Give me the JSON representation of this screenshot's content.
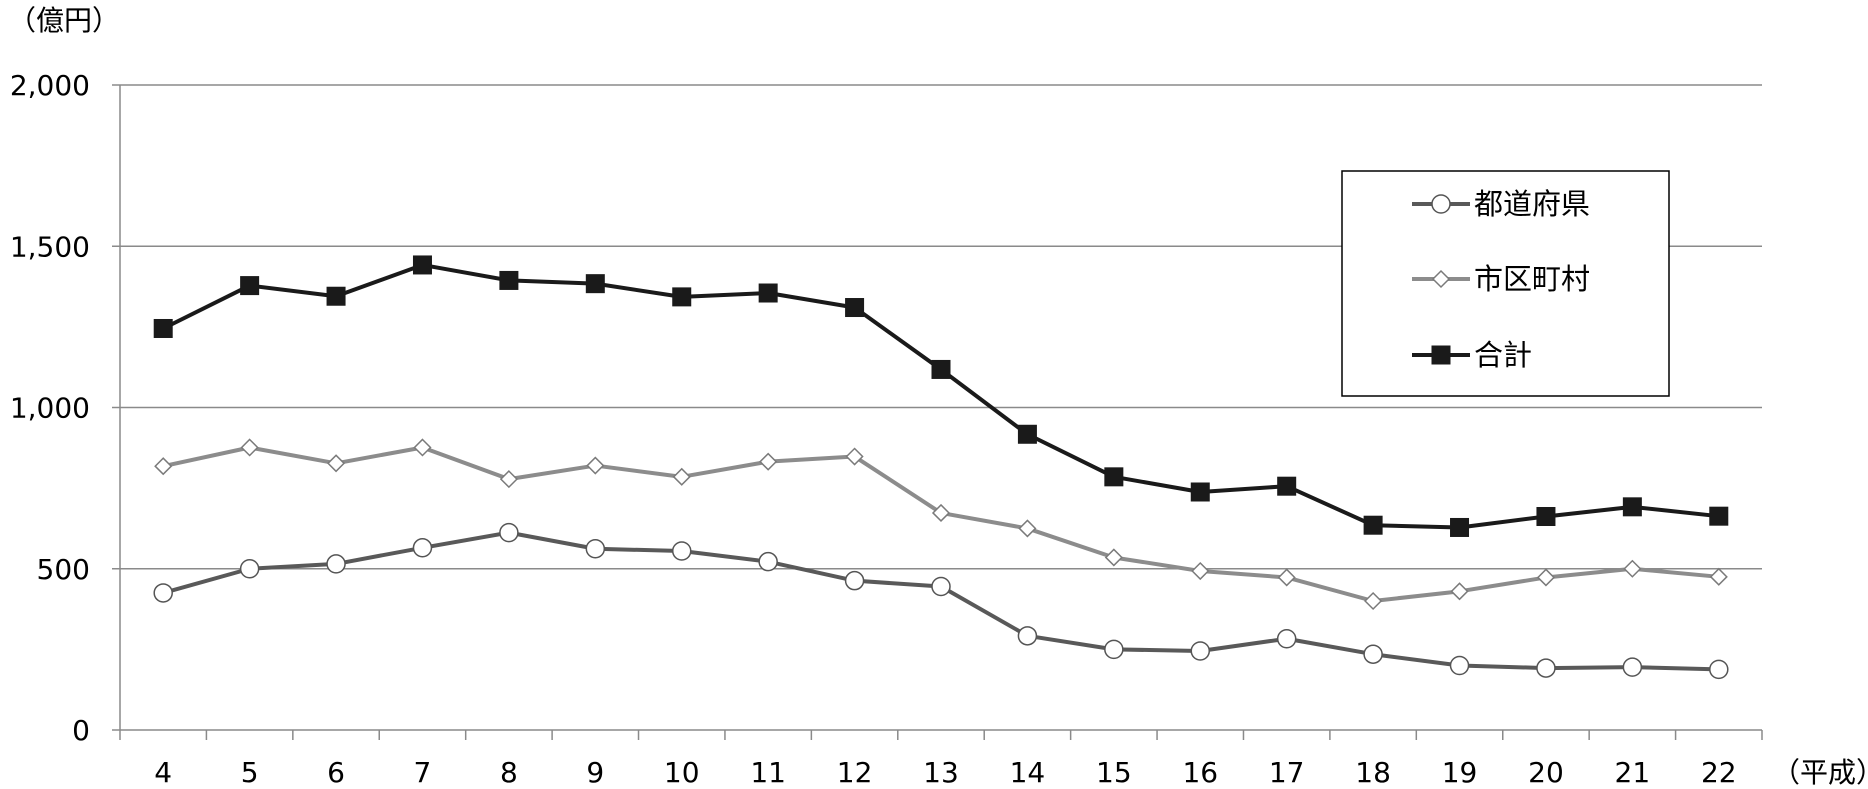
{
  "chart_data": {
    "type": "line",
    "y_unit_label": "（億円）",
    "x_unit_label": "（平成）",
    "categories": [
      "4",
      "5",
      "6",
      "7",
      "8",
      "9",
      "10",
      "11",
      "12",
      "13",
      "14",
      "15",
      "16",
      "17",
      "18",
      "19",
      "20",
      "21",
      "22"
    ],
    "ylim": [
      0,
      2000
    ],
    "yticks": [
      0,
      500,
      1000,
      1500,
      2000
    ],
    "ytick_labels": [
      "0",
      "500",
      "1,000",
      "1,500",
      "2,000"
    ],
    "grid": true,
    "legend_position": "top-right",
    "series": [
      {
        "name": "都道府県",
        "marker": "circle",
        "color": "#595959",
        "values": [
          425,
          500,
          515,
          565,
          612,
          562,
          555,
          522,
          463,
          445,
          292,
          250,
          245,
          283,
          235,
          200,
          192,
          195,
          188
        ]
      },
      {
        "name": "市区町村",
        "marker": "diamond",
        "color": "#8c8c8c",
        "values": [
          818,
          876,
          827,
          876,
          778,
          820,
          785,
          832,
          848,
          673,
          625,
          535,
          493,
          473,
          400,
          430,
          473,
          500,
          475
        ]
      },
      {
        "name": "合計",
        "marker": "square",
        "color": "#1a1a1a",
        "values": [
          1245,
          1378,
          1345,
          1442,
          1394,
          1384,
          1343,
          1355,
          1310,
          1118,
          917,
          785,
          738,
          756,
          635,
          628,
          662,
          692,
          663
        ]
      }
    ]
  }
}
